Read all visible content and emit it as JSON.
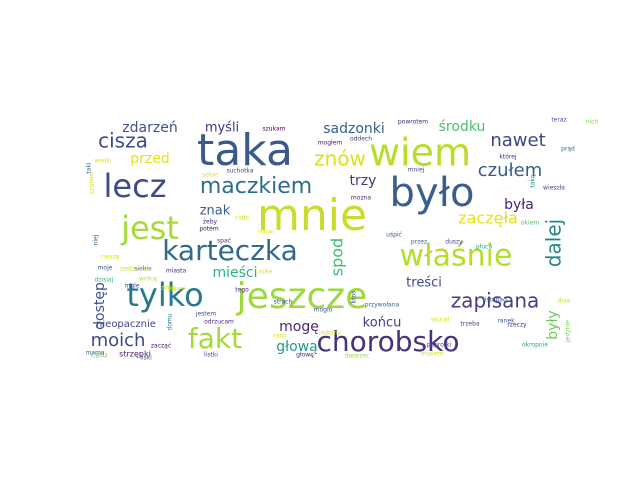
{
  "words": [
    {
      "text": "mnie",
      "color": "#c8dc2c"
    },
    {
      "text": "taka",
      "color": "#3a5a8c"
    },
    {
      "text": "było",
      "color": "#3b5f8d"
    },
    {
      "text": "jeszcze",
      "color": "#9bd93c"
    },
    {
      "text": "wiem",
      "color": "#b8de29"
    },
    {
      "text": "jest",
      "color": "#a5db36"
    },
    {
      "text": "lecz",
      "color": "#3e4a89"
    },
    {
      "text": "tylko",
      "color": "#2a788e"
    },
    {
      "text": "karteczka",
      "color": "#31688e"
    },
    {
      "text": "właśnie",
      "color": "#b5de2b"
    },
    {
      "text": "fakt",
      "color": "#a2da37"
    },
    {
      "text": "chorobsko",
      "color": "#46337e"
    },
    {
      "text": "znów",
      "color": "#d8e219"
    },
    {
      "text": "maczkiem",
      "color": "#2f6c8e"
    },
    {
      "text": "zapisana",
      "color": "#433e85"
    },
    {
      "text": "cisza",
      "color": "#3e4c8a"
    },
    {
      "text": "nawet",
      "color": "#414487"
    },
    {
      "text": "czułem",
      "color": "#365c8d"
    },
    {
      "text": "moich",
      "color": "#3f4788"
    },
    {
      "text": "zaczęła",
      "color": "#e5e419"
    },
    {
      "text": "dalej",
      "color": "#25858e"
    },
    {
      "text": "była",
      "color": "#482173"
    },
    {
      "text": "trzy",
      "color": "#453781"
    },
    {
      "text": "sadzonki",
      "color": "#355f8d"
    },
    {
      "text": "środku",
      "color": "#4ac16d"
    },
    {
      "text": "zdarzeń",
      "color": "#3b528b"
    },
    {
      "text": "myśli",
      "color": "#46337e"
    },
    {
      "text": "przed",
      "color": "#e2e418"
    },
    {
      "text": "spod",
      "color": "#3fbc73"
    },
    {
      "text": "znak",
      "color": "#355e8d"
    },
    {
      "text": "mieści",
      "color": "#2db27d"
    },
    {
      "text": "dostęp",
      "color": "#3b528b"
    },
    {
      "text": "mogę",
      "color": "#482475"
    },
    {
      "text": "głową",
      "color": "#1f9a8a"
    },
    {
      "text": "końcu",
      "color": "#433d84"
    },
    {
      "text": "treści",
      "color": "#3e4989"
    },
    {
      "text": "były",
      "color": "#6ccd5a"
    },
    {
      "text": "nieopacznie",
      "color": "#3f4788"
    },
    {
      "text": "celu",
      "color": "#7ad151"
    },
    {
      "text": "strzępki",
      "color": "#48186a"
    },
    {
      "text": "szukam",
      "color": "#440154"
    },
    {
      "text": "powrotem",
      "color": "#482878"
    },
    {
      "text": "oddech",
      "color": "#453882"
    },
    {
      "text": "mogłem",
      "color": "#471365"
    },
    {
      "text": "mniej",
      "color": "#3e4989"
    },
    {
      "text": "której",
      "color": "#46327e"
    },
    {
      "text": "teraz",
      "color": "#3b528b"
    },
    {
      "text": "nich",
      "color": "#7fd34e"
    },
    {
      "text": "prąd",
      "color": "#2a788e"
    },
    {
      "text": "sobie",
      "color": "#e0e318"
    },
    {
      "text": "suchotka",
      "color": "#3e4a89"
    },
    {
      "text": "wielki",
      "color": "#dde318"
    },
    {
      "text": "taki",
      "color": "#2c728e"
    },
    {
      "text": "czułem",
      "color": "#c2df23"
    },
    {
      "text": "mozna",
      "color": "#482071"
    },
    {
      "text": "żeby",
      "color": "#472d7b"
    },
    {
      "text": "siebie",
      "color": "#3e4c8a"
    },
    {
      "text": "potem",
      "color": "#450a5c"
    },
    {
      "text": "spać",
      "color": "#472c7a"
    },
    {
      "text": "uśpić",
      "color": "#38588c"
    },
    {
      "text": "przez",
      "color": "#32658e"
    },
    {
      "text": "duszy",
      "color": "#433e85"
    },
    {
      "text": "płuca",
      "color": "#22a785"
    },
    {
      "text": "wieszła",
      "color": "#3e4989"
    },
    {
      "text": "niej",
      "color": "#31688e"
    },
    {
      "text": "moje",
      "color": "#3a538b"
    },
    {
      "text": "miasta",
      "color": "#46307e"
    },
    {
      "text": "ciało",
      "color": "#c8e020"
    },
    {
      "text": "tego",
      "color": "#482576"
    },
    {
      "text": "mogło",
      "color": "#3e4a89"
    },
    {
      "text": "strach",
      "color": "#3b528b"
    },
    {
      "text": "przywołana",
      "color": "#31668e"
    },
    {
      "text": "listopad",
      "color": "#3a548c"
    },
    {
      "text": "trzeba",
      "color": "#3f4889"
    },
    {
      "text": "rzeczy",
      "color": "#472f7d"
    },
    {
      "text": "jedynie",
      "color": "#7ad151"
    },
    {
      "text": "jestem",
      "color": "#3e4a89"
    },
    {
      "text": "odrzucam",
      "color": "#472a7a"
    },
    {
      "text": "lodomy",
      "color": "#dde318"
    },
    {
      "text": "dworzec",
      "color": "#a0da39"
    },
    {
      "text": "mialem",
      "color": "#d0e11c"
    },
    {
      "text": "paprotki",
      "color": "#3b528b"
    },
    {
      "text": "okropnie",
      "color": "#20a386"
    },
    {
      "text": "listki",
      "color": "#3e4a89"
    },
    {
      "text": "zacząć",
      "color": "#471063"
    },
    {
      "text": "domu",
      "color": "#2c738e"
    },
    {
      "text": "mama",
      "color": "#2e6f8e"
    },
    {
      "text": "głowę",
      "color": "#482878"
    },
    {
      "text": "ktoś",
      "color": "#3f4788"
    },
    {
      "text": "takę",
      "color": "#24878e"
    },
    {
      "text": "jesień",
      "color": "#d8e219"
    },
    {
      "text": "okiem",
      "color": "#50c46a"
    },
    {
      "text": "zostawiam",
      "color": "#c5e021"
    },
    {
      "text": "liski",
      "color": "#3b528b"
    },
    {
      "text": "zołte",
      "color": "#e0e318"
    },
    {
      "text": "cieszę",
      "color": "#d2e21b"
    },
    {
      "text": "wrócę",
      "color": "#ade237"
    },
    {
      "text": "zimą",
      "color": "#c8e020"
    },
    {
      "text": "dzisiaj",
      "color": "#2fb47c"
    },
    {
      "text": "mgle",
      "color": "#3e4a89"
    },
    {
      "text": "mówi",
      "color": "#e5e419"
    },
    {
      "text": "rano",
      "color": "#d6e21a"
    },
    {
      "text": "skurał",
      "color": "#cfe11c"
    },
    {
      "text": "ranek",
      "color": "#3b528b"
    },
    {
      "text": "dnia",
      "color": "#c0de25"
    }
  ]
}
